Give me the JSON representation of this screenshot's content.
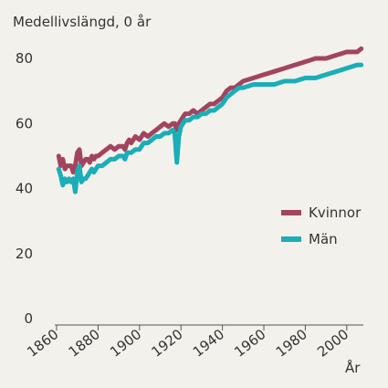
{
  "chart_data": {
    "type": "line",
    "ylabel": "Medellivslängd, 0 år",
    "xlabel": "År",
    "xlim": [
      1860,
      2008
    ],
    "ylim": [
      0,
      80
    ],
    "x_ticks": [
      "1860",
      "1880",
      "1900",
      "1920",
      "1940",
      "1960",
      "1980",
      "2000"
    ],
    "y_ticks": [
      "0",
      "20",
      "40",
      "60",
      "80"
    ],
    "grid": false,
    "legend_position": "right",
    "series": [
      {
        "name": "Kvinnor",
        "color": "#a3445f",
        "x": [
          1861,
          1862,
          1863,
          1864,
          1865,
          1866,
          1867,
          1868,
          1869,
          1870,
          1871,
          1872,
          1873,
          1874,
          1875,
          1876,
          1877,
          1878,
          1879,
          1880,
          1882,
          1884,
          1886,
          1888,
          1890,
          1892,
          1893,
          1894,
          1895,
          1896,
          1898,
          1900,
          1901,
          1902,
          1904,
          1906,
          1908,
          1910,
          1912,
          1914,
          1916,
          1917,
          1918,
          1919,
          1920,
          1921,
          1922,
          1924,
          1926,
          1928,
          1930,
          1932,
          1934,
          1936,
          1938,
          1940,
          1942,
          1944,
          1946,
          1948,
          1950,
          1955,
          1960,
          1965,
          1970,
          1975,
          1980,
          1985,
          1990,
          1995,
          2000,
          2005,
          2007
        ],
        "values": [
          50,
          47,
          49,
          46,
          47,
          47,
          47,
          45,
          47,
          51,
          52,
          47,
          48,
          49,
          49,
          48,
          50,
          49,
          50,
          50,
          51,
          52,
          53,
          52,
          53,
          53,
          52,
          54,
          55,
          54,
          56,
          55,
          56,
          57,
          56,
          57,
          58,
          59,
          60,
          59,
          60,
          60,
          58,
          60,
          61,
          62,
          63,
          63,
          64,
          63,
          64,
          65,
          66,
          66,
          67,
          68,
          70,
          71,
          71,
          72,
          73,
          74,
          75,
          76,
          77,
          78,
          79,
          80,
          80,
          81,
          82,
          82,
          83
        ]
      },
      {
        "name": "Män",
        "color": "#1aaeb8",
        "x": [
          1861,
          1862,
          1863,
          1864,
          1865,
          1866,
          1867,
          1868,
          1869,
          1870,
          1871,
          1872,
          1873,
          1874,
          1875,
          1876,
          1877,
          1878,
          1879,
          1880,
          1882,
          1884,
          1886,
          1888,
          1890,
          1892,
          1893,
          1894,
          1895,
          1896,
          1898,
          1900,
          1901,
          1902,
          1904,
          1906,
          1908,
          1910,
          1912,
          1914,
          1916,
          1917,
          1918,
          1919,
          1920,
          1921,
          1922,
          1924,
          1926,
          1928,
          1930,
          1932,
          1934,
          1936,
          1938,
          1940,
          1942,
          1944,
          1946,
          1948,
          1950,
          1955,
          1960,
          1965,
          1970,
          1975,
          1980,
          1985,
          1990,
          1995,
          2000,
          2005,
          2007
        ],
        "values": [
          46,
          44,
          41,
          43,
          42,
          43,
          42,
          43,
          39,
          45,
          47,
          42,
          43,
          43,
          44,
          45,
          46,
          45,
          46,
          47,
          47,
          48,
          49,
          49,
          50,
          50,
          49,
          51,
          51,
          51,
          52,
          52,
          53,
          54,
          54,
          55,
          56,
          56,
          57,
          57,
          58,
          57,
          48,
          56,
          59,
          60,
          61,
          61,
          62,
          62,
          63,
          63,
          64,
          64,
          65,
          66,
          68,
          69,
          70,
          71,
          71,
          72,
          72,
          72,
          73,
          73,
          74,
          74,
          75,
          76,
          77,
          78,
          78
        ]
      }
    ]
  }
}
